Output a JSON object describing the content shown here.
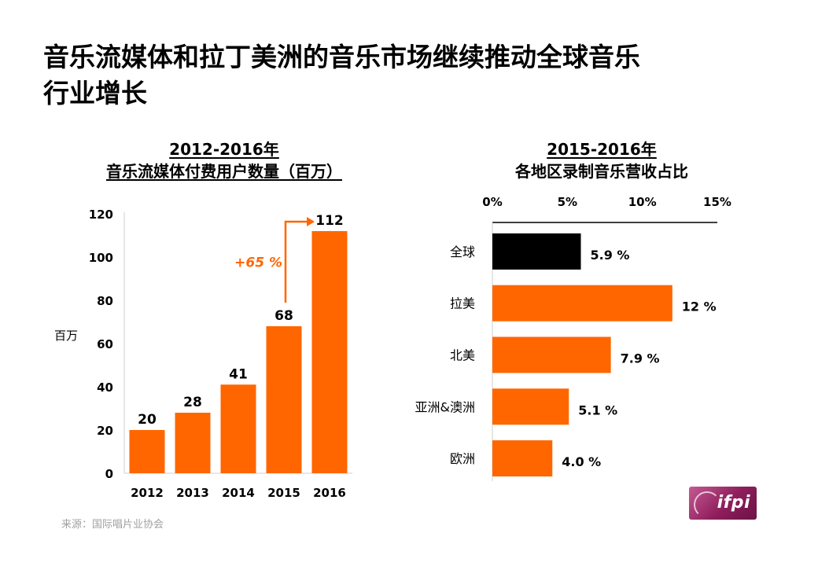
{
  "title": {
    "line1": "音乐流媒体和拉丁美洲的音乐市场继续推动全球音乐",
    "line2": "行业增长"
  },
  "source": "来源：国际唱片业协会",
  "logo_text": "ifpi",
  "colors": {
    "accent": "#ff6600",
    "black": "#000000",
    "logo": "#8e1e5c"
  },
  "chart_data": [
    {
      "type": "bar",
      "title_line1": "2012-2016年",
      "title_line2": "音乐流媒体付费用户数量（百万）",
      "ylabel": "百万",
      "xlabel": "",
      "categories": [
        "2012",
        "2013",
        "2014",
        "2015",
        "2016"
      ],
      "values": [
        20,
        28,
        41,
        68,
        112
      ],
      "value_labels": [
        "20",
        "28",
        "41",
        "68",
        "112"
      ],
      "ylim": [
        0,
        120
      ],
      "yticks": [
        "0",
        "20",
        "40",
        "60",
        "80",
        "100",
        "120"
      ],
      "annotation": "+65 %",
      "annotation_from": "2015",
      "annotation_to": "2016"
    },
    {
      "type": "bar",
      "orientation": "horizontal",
      "title_line1": "2015-2016年",
      "title_line2": "各地区录制音乐营收占比",
      "categories": [
        "全球",
        "拉美",
        "北美",
        "亚洲&澳洲",
        "欧洲"
      ],
      "values": [
        5.9,
        12,
        7.9,
        5.1,
        4.0
      ],
      "value_labels": [
        "5.9 %",
        "12 %",
        "7.9 %",
        "5.1 %",
        "4.0 %"
      ],
      "xlim": [
        0,
        15
      ],
      "xticks": [
        "0%",
        "5%",
        "10%",
        "15%"
      ],
      "highlight": "全球"
    }
  ]
}
